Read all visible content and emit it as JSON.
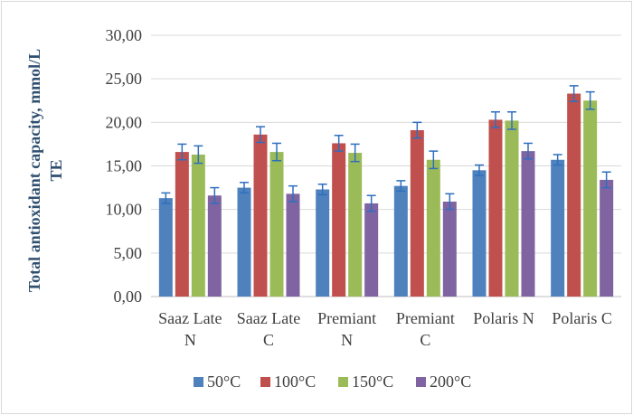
{
  "chart_data": {
    "type": "bar",
    "title": "",
    "ylabel": [
      "Total antioxidant capacity, mmol/L",
      "TE"
    ],
    "xlabel": "",
    "ylim": [
      0,
      30
    ],
    "ytick_values": [
      0,
      5,
      10,
      15,
      20,
      25,
      30
    ],
    "ytick_labels": [
      "0,00",
      "5,00",
      "10,00",
      "15,00",
      "20,00",
      "25,00",
      "30,00"
    ],
    "grid": true,
    "legend_position": "bottom",
    "categories": [
      [
        "Saaz Late",
        "N"
      ],
      [
        "Saaz Late",
        "C"
      ],
      [
        "Premiant",
        "N"
      ],
      [
        "Premiant",
        "C"
      ],
      [
        "Polaris N"
      ],
      [
        "Polaris C"
      ]
    ],
    "series": [
      {
        "name": "50°C",
        "color": "#4f81bd",
        "values": [
          11.3,
          12.5,
          12.3,
          12.7,
          14.5,
          15.7
        ],
        "errors": [
          0.6,
          0.6,
          0.6,
          0.6,
          0.6,
          0.6
        ]
      },
      {
        "name": "100°C",
        "color": "#c0504d",
        "values": [
          16.6,
          18.6,
          17.6,
          19.1,
          20.3,
          23.3
        ],
        "errors": [
          0.9,
          0.9,
          0.9,
          0.9,
          0.9,
          0.9
        ]
      },
      {
        "name": "150°C",
        "color": "#9bbb59",
        "values": [
          16.3,
          16.6,
          16.5,
          15.7,
          20.2,
          22.5
        ],
        "errors": [
          1.0,
          1.0,
          1.0,
          1.0,
          1.0,
          1.0
        ]
      },
      {
        "name": "200°C",
        "color": "#8064a2",
        "values": [
          11.6,
          11.8,
          10.7,
          10.9,
          16.7,
          13.4
        ],
        "errors": [
          0.9,
          0.9,
          0.9,
          0.9,
          0.9,
          0.9
        ]
      }
    ],
    "error_bar_color": "#2e6fbe",
    "grid_color": "#d9d9d9",
    "axis_color": "#bfbfbf"
  }
}
